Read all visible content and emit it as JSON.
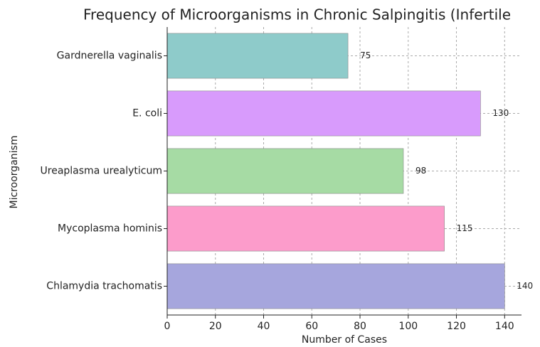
{
  "chart_data": {
    "type": "barh",
    "title": "Frequency of Microorganisms in Chronic Salpingitis (Infertile",
    "x_label": "Number of Cases",
    "y_label": "Microorganism",
    "categories": [
      "Gardnerella vaginalis",
      "E. coli",
      "Ureaplasma urealyticum",
      "Mycoplasma hominis",
      "Chlamydia trachomatis"
    ],
    "values": [
      75,
      130,
      98,
      115,
      140
    ],
    "colors": [
      "#8ecbca",
      "#d89bfc",
      "#a6dba4",
      "#fc9ccb",
      "#a6a6dd"
    ],
    "xlim": [
      0,
      147
    ],
    "xticks": [
      0,
      20,
      40,
      60,
      80,
      100,
      120,
      140
    ],
    "grid": true
  }
}
